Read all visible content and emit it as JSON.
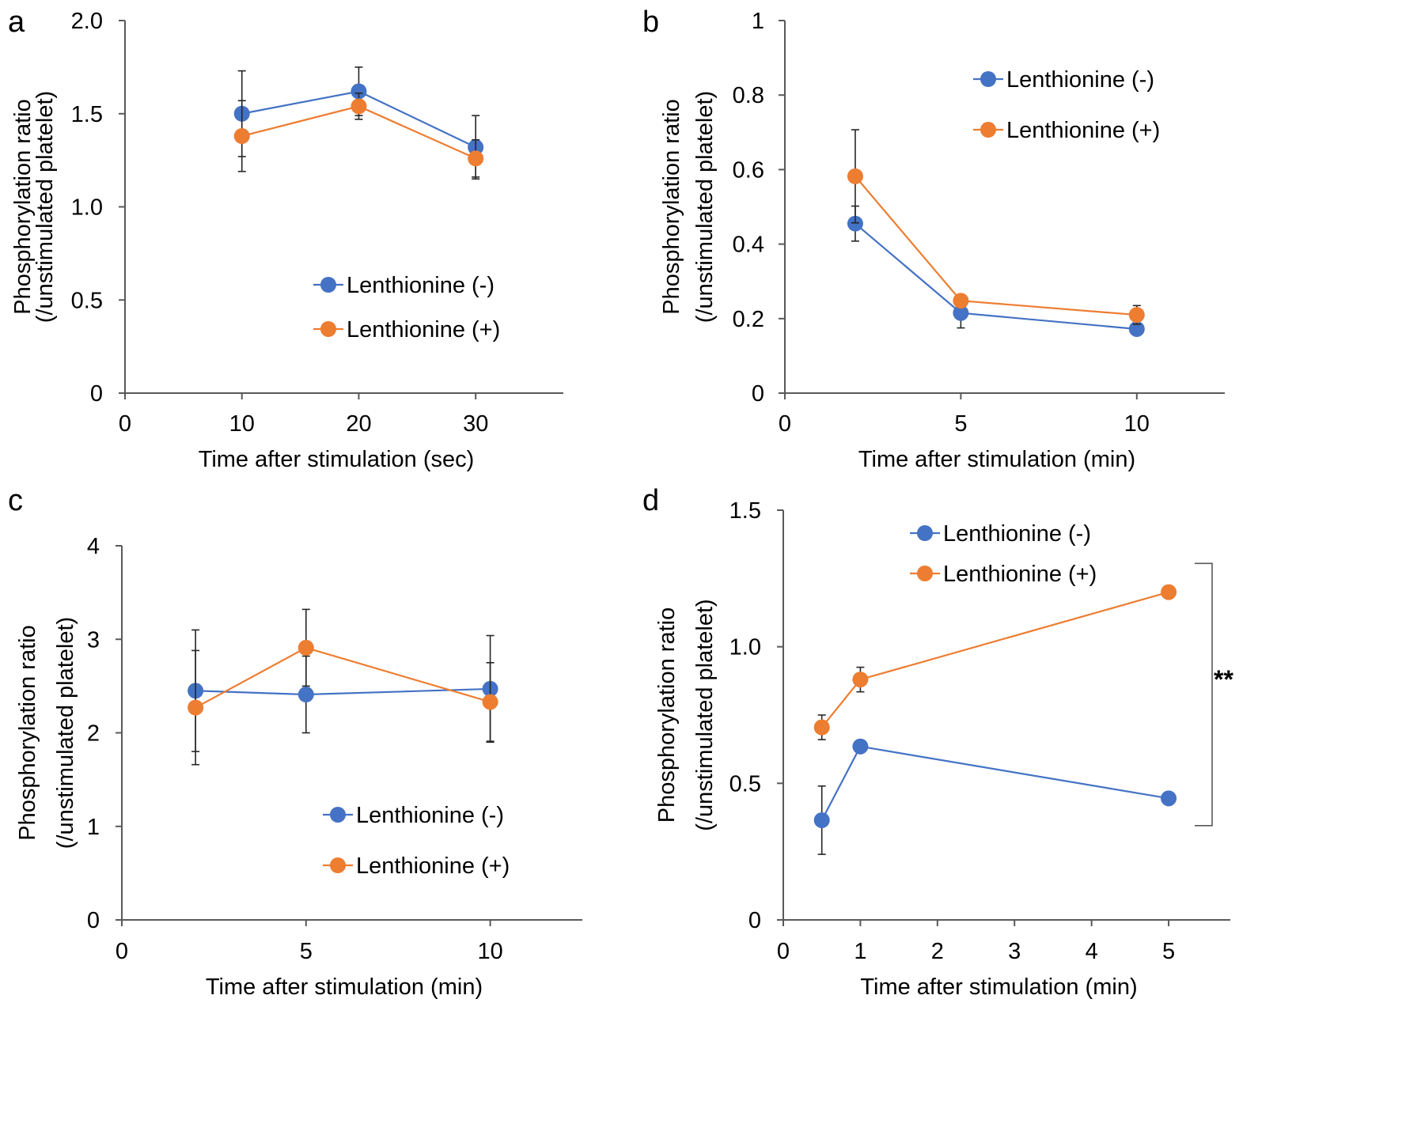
{
  "colors": {
    "series_minus": "#4472C4",
    "series_plus": "#ED7D31",
    "axis": "#595959",
    "errorbar": "#262626",
    "text": "#000000"
  },
  "chart_data": [
    {
      "panel": "a",
      "type": "line",
      "xlabel": "Time after stimulation (sec)",
      "ylabel_line1": "Phosphorylation ratio",
      "ylabel_line2": "(/unstimulated platelet)",
      "xlim": [
        0,
        37.5
      ],
      "ylim": [
        0,
        2.0
      ],
      "x_ticks": [
        0,
        10,
        20,
        30
      ],
      "x_tick_labels": [
        "0",
        "10",
        "20",
        "30"
      ],
      "y_ticks": [
        0,
        0.5,
        1.0,
        1.5,
        2.0
      ],
      "y_tick_labels": [
        "0",
        "0.5",
        "1.0",
        "1.5",
        "2.0"
      ],
      "legend_position": "lower-right",
      "series": [
        {
          "name": "Lenthionine (-)",
          "color": "#4472C4",
          "x": [
            10,
            20,
            30
          ],
          "y": [
            1.5,
            1.62,
            1.32
          ],
          "err": [
            0.23,
            0.13,
            0.17
          ]
        },
        {
          "name": "Lenthionine (+)",
          "color": "#ED7D31",
          "x": [
            10,
            20,
            30
          ],
          "y": [
            1.38,
            1.54,
            1.26
          ],
          "err": [
            0.19,
            0.07,
            0.1
          ]
        }
      ],
      "annotations": []
    },
    {
      "panel": "b",
      "type": "line",
      "xlabel": "Time after stimulation (min)",
      "ylabel_line1": "Phosphorylation ratio",
      "ylabel_line2": "(/unstimulated platelet)",
      "xlim": [
        0,
        12.5
      ],
      "ylim": [
        0,
        1
      ],
      "x_ticks": [
        0,
        5,
        10
      ],
      "x_tick_labels": [
        "0",
        "5",
        "10"
      ],
      "y_ticks": [
        0,
        0.2,
        0.4,
        0.6,
        0.8,
        1
      ],
      "y_tick_labels": [
        "0",
        "0.2",
        "0.4",
        "0.6",
        "0.8",
        "1"
      ],
      "legend_position": "top-right",
      "series": [
        {
          "name": "Lenthionine (-)",
          "color": "#4472C4",
          "x": [
            2,
            5,
            10
          ],
          "y": [
            0.455,
            0.215,
            0.172
          ],
          "err": [
            0.047,
            0.04,
            0.015
          ]
        },
        {
          "name": "Lenthionine (+)",
          "color": "#ED7D31",
          "x": [
            2,
            5,
            10
          ],
          "y": [
            0.582,
            0.248,
            0.21
          ],
          "err": [
            0.125,
            0.015,
            0.025
          ]
        }
      ],
      "annotations": []
    },
    {
      "panel": "c",
      "type": "line",
      "xlabel": "Time after stimulation (min)",
      "ylabel_line1": "Phosphorylation ratio",
      "ylabel_line2": "(/unstimulated platelet)",
      "xlim": [
        0,
        12.5
      ],
      "ylim": [
        0,
        4
      ],
      "x_ticks": [
        0,
        5,
        10
      ],
      "x_tick_labels": [
        "0",
        "5",
        "10"
      ],
      "y_ticks": [
        0,
        1,
        2,
        3,
        4
      ],
      "y_tick_labels": [
        "0",
        "1",
        "2",
        "3",
        "4"
      ],
      "legend_position": "lower-right",
      "series": [
        {
          "name": "Lenthionine (-)",
          "color": "#4472C4",
          "x": [
            2,
            5,
            10
          ],
          "y": [
            2.45,
            2.41,
            2.47
          ],
          "err": [
            0.65,
            0.41,
            0.57
          ]
        },
        {
          "name": "Lenthionine (+)",
          "color": "#ED7D31",
          "x": [
            2,
            5,
            10
          ],
          "y": [
            2.27,
            2.91,
            2.33
          ],
          "err": [
            0.61,
            0.41,
            0.42
          ]
        }
      ],
      "annotations": []
    },
    {
      "panel": "d",
      "type": "line",
      "xlabel": "Time after stimulation (min)",
      "ylabel_line1": "Phosphorylation ratio",
      "ylabel_line2": "(/unstimulated platelet)",
      "xlim": [
        0,
        5.8
      ],
      "ylim": [
        0,
        1.5
      ],
      "x_ticks": [
        0,
        1,
        2,
        3,
        4,
        5
      ],
      "x_tick_labels": [
        "0",
        "1",
        "2",
        "3",
        "4",
        "5"
      ],
      "y_ticks": [
        0,
        0.5,
        1.0,
        1.5
      ],
      "y_tick_labels": [
        "0",
        "0.5",
        "1.0",
        "1.5"
      ],
      "legend_position": "top",
      "series": [
        {
          "name": "Lenthionine (-)",
          "color": "#4472C4",
          "x": [
            0.5,
            1,
            5
          ],
          "y": [
            0.365,
            0.635,
            0.445
          ],
          "err": [
            0.125,
            0.012,
            0.005
          ]
        },
        {
          "name": "Lenthionine (+)",
          "color": "#ED7D31",
          "x": [
            0.5,
            1,
            5
          ],
          "y": [
            0.705,
            0.88,
            1.2
          ],
          "err": [
            0.045,
            0.045,
            0.008
          ]
        }
      ],
      "annotations": [
        {
          "text": "**",
          "type": "significance-bracket",
          "y_range": [
            0.345,
            1.305
          ]
        }
      ]
    }
  ]
}
